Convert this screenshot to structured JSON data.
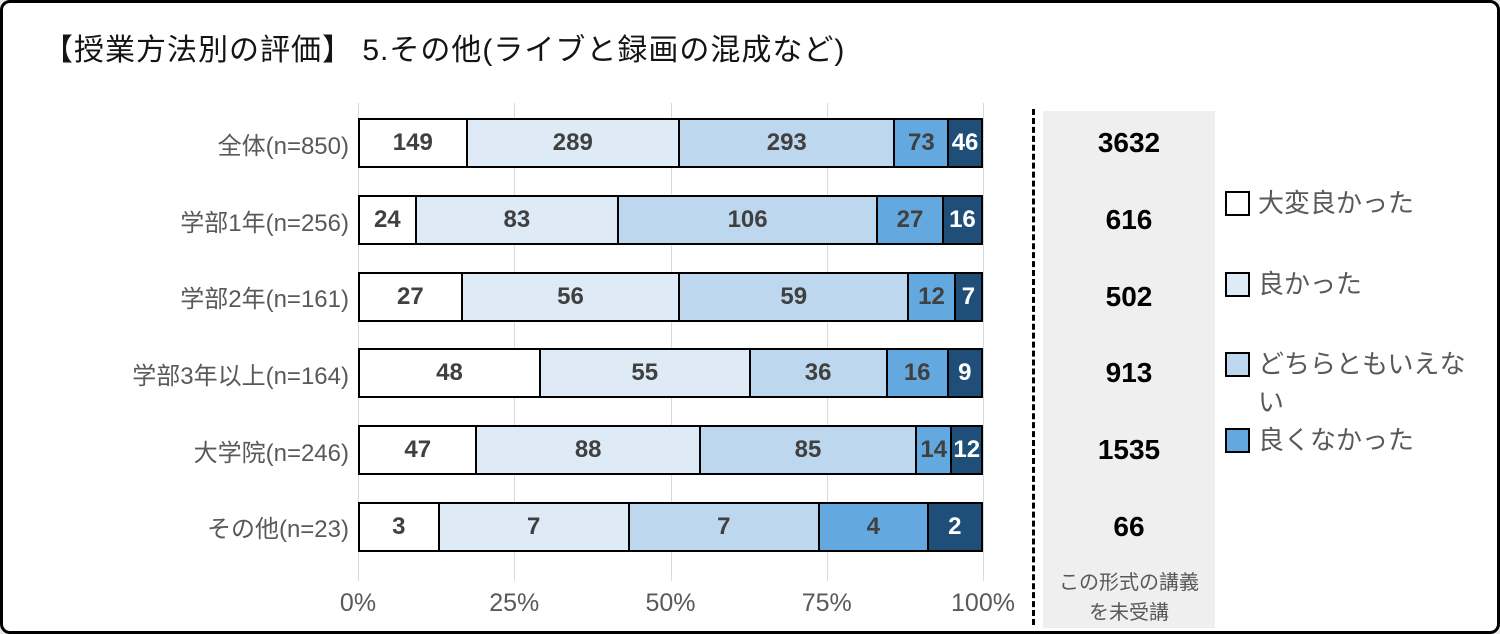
{
  "title": "【授業方法別の評価】 5.その他(ライブと録画の混成など)",
  "colors": {
    "very_good": "#FFFFFF",
    "good": "#DEEBF7",
    "neutral": "#BDD7EE",
    "not_good": "#63A8DE",
    "worst": "#1F4E79",
    "gridline": "#D9D9D9",
    "panel_bg": "#EFEFEF",
    "axis_text": "#595959",
    "bar_label": "#404040"
  },
  "legend": {
    "items": [
      {
        "label": "大変良かった",
        "color": "#FFFFFF"
      },
      {
        "label": "良かった",
        "color": "#DEEBF7"
      },
      {
        "label": "どちらともいえない",
        "color": "#BDD7EE"
      },
      {
        "label": "良くなかった",
        "color": "#63A8DE"
      }
    ]
  },
  "right_panel": {
    "note_line1": "この形式の講義",
    "note_line2": "を未受講",
    "values": [
      "3632",
      "616",
      "502",
      "913",
      "1535",
      "66"
    ]
  },
  "chart_data": {
    "type": "bar",
    "stacked": true,
    "orientation": "horizontal",
    "title": "【授業方法別の評価】 5.その他(ライブと録画の混成など)",
    "categories": [
      "全体(n=850)",
      "学部1年(n=256)",
      "学部2年(n=161)",
      "学部3年以上(n=164)",
      "大学院(n=246)",
      "その他(n=23)"
    ],
    "series": [
      {
        "name": "大変良かった",
        "color": "#FFFFFF",
        "values": [
          149,
          24,
          27,
          48,
          47,
          3
        ]
      },
      {
        "name": "良かった",
        "color": "#DEEBF7",
        "values": [
          289,
          83,
          56,
          55,
          88,
          7
        ]
      },
      {
        "name": "どちらともいえない",
        "color": "#BDD7EE",
        "values": [
          293,
          106,
          59,
          36,
          85,
          7
        ]
      },
      {
        "name": "良くなかった",
        "color": "#63A8DE",
        "values": [
          73,
          27,
          12,
          16,
          14,
          4
        ]
      },
      {
        "name": "",
        "color": "#1F4E79",
        "values": [
          46,
          16,
          7,
          9,
          12,
          2
        ]
      }
    ],
    "row_totals": [
      850,
      256,
      161,
      164,
      246,
      23
    ],
    "unshown_column": {
      "note": "この形式の講義を未受講",
      "values": [
        3632,
        616,
        502,
        913,
        1535,
        66
      ]
    },
    "x_ticks": [
      "0%",
      "25%",
      "50%",
      "75%",
      "100%"
    ],
    "xlim_percent": [
      0,
      100
    ],
    "grid": true,
    "legend_position": "right",
    "value_labels": "counts shown inside segments; segment width = count / row total"
  }
}
